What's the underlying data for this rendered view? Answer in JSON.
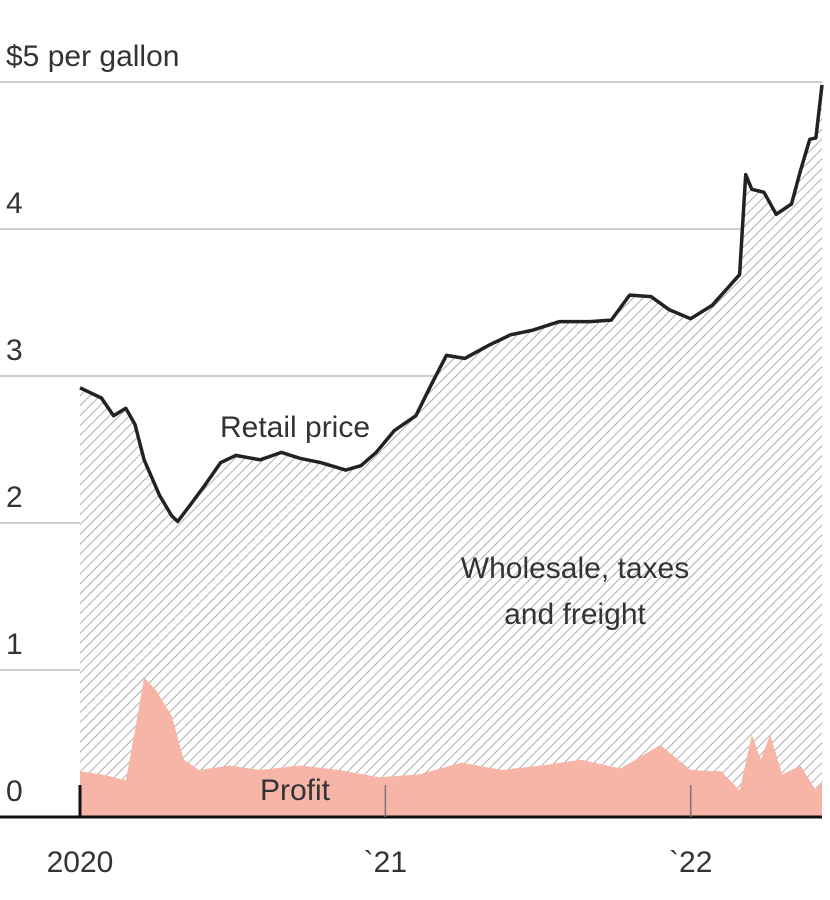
{
  "chart_data": {
    "type": "area",
    "annotation": [
      "Wholesale, taxes",
      "and freight"
    ],
    "xlim": [
      2020,
      2022.43
    ],
    "xticks": [
      {
        "value": 2020,
        "label": "2020"
      },
      {
        "value": 2021,
        "label": "`21"
      },
      {
        "value": 2022,
        "label": "`22"
      }
    ],
    "ylim": [
      0,
      5
    ],
    "yticks": [
      0,
      1,
      2,
      3,
      4,
      {
        "value": 5,
        "label": "$5 per gallon"
      }
    ],
    "grid": true,
    "series": [
      {
        "name": "Retail price",
        "color": "#222222",
        "hatch": "#9a9a9a",
        "x": [
          2020.0,
          2020.07,
          2020.11,
          2020.15,
          2020.18,
          2020.21,
          2020.26,
          2020.3,
          2020.32,
          2020.36,
          2020.41,
          2020.46,
          2020.51,
          2020.59,
          2020.66,
          2020.72,
          2020.79,
          2020.87,
          2020.92,
          2020.97,
          2021.03,
          2021.1,
          2021.15,
          2021.2,
          2021.26,
          2021.34,
          2021.41,
          2021.48,
          2021.57,
          2021.67,
          2021.74,
          2021.8,
          2021.87,
          2021.93,
          2022.0,
          2022.07,
          2022.13,
          2022.16,
          2022.18,
          2022.2,
          2022.24,
          2022.28,
          2022.33,
          2022.36,
          2022.39,
          2022.41,
          2022.43
        ],
        "values": [
          2.92,
          2.85,
          2.73,
          2.78,
          2.67,
          2.43,
          2.19,
          2.05,
          2.01,
          2.12,
          2.26,
          2.41,
          2.46,
          2.43,
          2.48,
          2.44,
          2.41,
          2.36,
          2.39,
          2.48,
          2.63,
          2.73,
          2.94,
          3.14,
          3.12,
          3.21,
          3.28,
          3.31,
          3.37,
          3.37,
          3.38,
          3.55,
          3.54,
          3.45,
          3.39,
          3.48,
          3.62,
          3.69,
          4.37,
          4.27,
          4.25,
          4.1,
          4.17,
          4.4,
          4.61,
          4.62,
          4.98
        ]
      },
      {
        "name": "Profit",
        "color": "#f7b5a8",
        "x": [
          2020.0,
          2020.07,
          2020.15,
          2020.18,
          2020.21,
          2020.25,
          2020.3,
          2020.34,
          2020.39,
          2020.49,
          2020.59,
          2020.72,
          2020.85,
          2020.98,
          2021.11,
          2021.25,
          2021.38,
          2021.51,
          2021.64,
          2021.77,
          2021.9,
          2022.0,
          2022.1,
          2022.16,
          2022.2,
          2022.23,
          2022.26,
          2022.3,
          2022.36,
          2022.41,
          2022.43
        ],
        "values": [
          0.31,
          0.29,
          0.25,
          0.59,
          0.95,
          0.86,
          0.69,
          0.39,
          0.32,
          0.35,
          0.32,
          0.35,
          0.32,
          0.27,
          0.29,
          0.37,
          0.32,
          0.35,
          0.39,
          0.33,
          0.49,
          0.32,
          0.31,
          0.18,
          0.56,
          0.39,
          0.56,
          0.29,
          0.35,
          0.18,
          0.25
        ]
      }
    ]
  }
}
